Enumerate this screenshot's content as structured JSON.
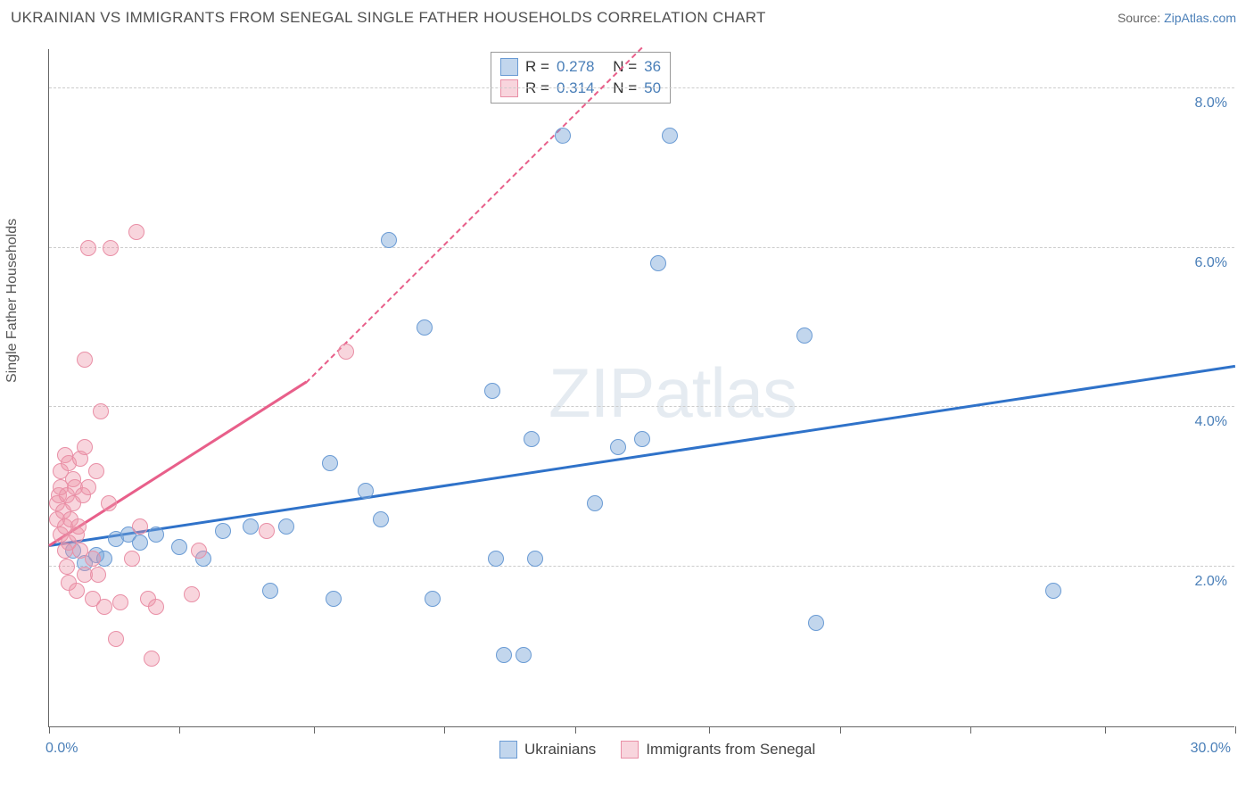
{
  "title": "UKRAINIAN VS IMMIGRANTS FROM SENEGAL SINGLE FATHER HOUSEHOLDS CORRELATION CHART",
  "source_label": "Source: ",
  "source_link": "ZipAtlas.com",
  "y_axis_label": "Single Father Households",
  "watermark_a": "ZIP",
  "watermark_b": "atlas",
  "chart": {
    "type": "scatter",
    "background_color": "#ffffff",
    "grid_color": "#cccccc",
    "axis_color": "#666666",
    "axis_label_color": "#4a7fb8",
    "xlim": [
      0,
      30
    ],
    "ylim": [
      0,
      8.5
    ],
    "x_tick_positions": [
      0,
      3.3,
      6.7,
      10,
      13.3,
      16.7,
      20,
      23.3,
      26.7,
      30
    ],
    "x_tick_labels_visible": {
      "0": "0.0%",
      "30": "30.0%"
    },
    "y_gridlines": [
      2.0,
      4.0,
      6.0,
      8.0
    ],
    "y_tick_labels": {
      "2.0": "2.0%",
      "4.0": "4.0%",
      "6.0": "6.0%",
      "8.0": "8.0%"
    },
    "series": [
      {
        "name": "Ukrainians",
        "fill": "rgba(120, 165, 216, 0.45)",
        "stroke": "#6a9bd4",
        "trend_color": "#2f72c9",
        "trend": {
          "x1": 0,
          "y1": 2.25,
          "x2": 30,
          "y2": 4.5
        },
        "points": [
          [
            0.6,
            2.2
          ],
          [
            0.9,
            2.05
          ],
          [
            1.2,
            2.15
          ],
          [
            1.4,
            2.1
          ],
          [
            1.7,
            2.35
          ],
          [
            2.0,
            2.4
          ],
          [
            2.3,
            2.3
          ],
          [
            2.7,
            2.4
          ],
          [
            3.3,
            2.25
          ],
          [
            3.9,
            2.1
          ],
          [
            4.4,
            2.45
          ],
          [
            5.1,
            2.5
          ],
          [
            5.6,
            1.7
          ],
          [
            6.0,
            2.5
          ],
          [
            7.1,
            3.3
          ],
          [
            7.2,
            1.6
          ],
          [
            8.0,
            2.95
          ],
          [
            8.4,
            2.6
          ],
          [
            8.6,
            6.1
          ],
          [
            9.5,
            5.0
          ],
          [
            9.7,
            1.6
          ],
          [
            11.2,
            4.2
          ],
          [
            11.3,
            2.1
          ],
          [
            11.5,
            0.9
          ],
          [
            12.0,
            0.9
          ],
          [
            12.2,
            3.6
          ],
          [
            12.3,
            2.1
          ],
          [
            13.0,
            7.4
          ],
          [
            13.8,
            2.8
          ],
          [
            14.4,
            3.5
          ],
          [
            15.0,
            3.6
          ],
          [
            15.4,
            5.8
          ],
          [
            15.7,
            7.4
          ],
          [
            19.1,
            4.9
          ],
          [
            19.4,
            1.3
          ],
          [
            25.4,
            1.7
          ]
        ]
      },
      {
        "name": "Immigrants from Senegal",
        "fill": "rgba(238, 150, 170, 0.4)",
        "stroke": "#e98fa6",
        "trend_color": "#e85f8a",
        "trend": {
          "x1": 0,
          "y1": 2.25,
          "x2": 6.5,
          "y2": 4.3
        },
        "trend_dash": {
          "x1": 6.5,
          "y1": 4.3,
          "x2": 15.0,
          "y2": 8.5
        },
        "points": [
          [
            0.2,
            2.6
          ],
          [
            0.2,
            2.8
          ],
          [
            0.25,
            2.9
          ],
          [
            0.3,
            3.0
          ],
          [
            0.3,
            3.2
          ],
          [
            0.3,
            2.4
          ],
          [
            0.35,
            2.7
          ],
          [
            0.4,
            3.4
          ],
          [
            0.4,
            2.5
          ],
          [
            0.4,
            2.2
          ],
          [
            0.45,
            2.9
          ],
          [
            0.45,
            2.0
          ],
          [
            0.5,
            3.3
          ],
          [
            0.5,
            1.8
          ],
          [
            0.5,
            2.3
          ],
          [
            0.55,
            2.6
          ],
          [
            0.6,
            3.1
          ],
          [
            0.6,
            2.8
          ],
          [
            0.65,
            3.0
          ],
          [
            0.7,
            2.4
          ],
          [
            0.7,
            1.7
          ],
          [
            0.75,
            2.5
          ],
          [
            0.8,
            3.35
          ],
          [
            0.8,
            2.2
          ],
          [
            0.85,
            2.9
          ],
          [
            0.9,
            3.5
          ],
          [
            0.9,
            4.6
          ],
          [
            0.9,
            1.9
          ],
          [
            1.0,
            3.0
          ],
          [
            1.0,
            6.0
          ],
          [
            1.1,
            2.1
          ],
          [
            1.1,
            1.6
          ],
          [
            1.2,
            3.2
          ],
          [
            1.25,
            1.9
          ],
          [
            1.3,
            3.95
          ],
          [
            1.4,
            1.5
          ],
          [
            1.5,
            2.8
          ],
          [
            1.55,
            6.0
          ],
          [
            1.7,
            1.1
          ],
          [
            1.8,
            1.55
          ],
          [
            2.1,
            2.1
          ],
          [
            2.2,
            6.2
          ],
          [
            2.3,
            2.5
          ],
          [
            2.5,
            1.6
          ],
          [
            2.6,
            0.85
          ],
          [
            2.7,
            1.5
          ],
          [
            3.6,
            1.65
          ],
          [
            3.8,
            2.2
          ],
          [
            5.5,
            2.45
          ],
          [
            7.5,
            4.7
          ]
        ]
      }
    ]
  },
  "stats": [
    {
      "r_label": "R =",
      "r": "0.278",
      "n_label": "N =",
      "n": "36"
    },
    {
      "r_label": "R =",
      "r": "0.314",
      "n_label": "N =",
      "n": "50"
    }
  ]
}
